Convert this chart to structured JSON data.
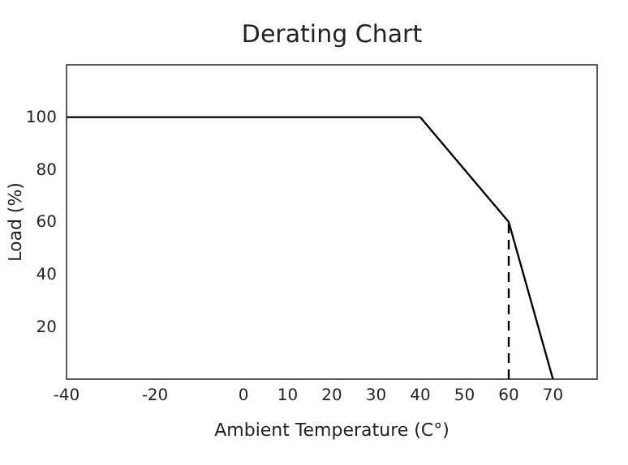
{
  "chart_data": {
    "type": "line",
    "title": "Derating Chart",
    "xlabel": "Ambient Temperature (C°)",
    "ylabel": "Load (%)",
    "xlim": [
      -40,
      80
    ],
    "xticks": [
      -40,
      -20,
      0,
      10,
      20,
      30,
      40,
      50,
      60,
      70
    ],
    "ylim": [
      0,
      120
    ],
    "yticks": [
      20,
      40,
      60,
      80,
      100
    ],
    "series": [
      {
        "color": "#000000",
        "x": [
          -40,
          40,
          60,
          70
        ],
        "values": [
          100,
          100,
          60,
          0
        ],
        "line_style": "solid"
      },
      {
        "color": "#000000",
        "x": [
          60,
          60
        ],
        "values": [
          0,
          60
        ],
        "line_style": "dashed"
      }
    ],
    "grid": false,
    "marker": "none"
  }
}
